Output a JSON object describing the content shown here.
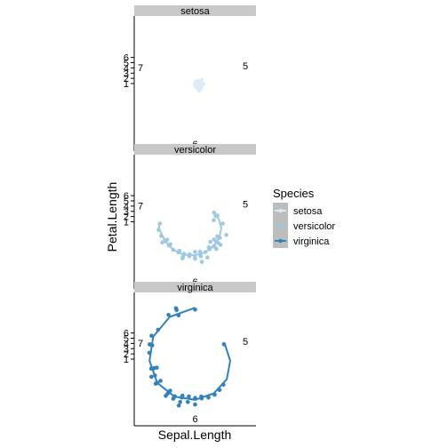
{
  "chart_data": {
    "type": "scatter",
    "coord": "polar",
    "xlabel": "Sepal.Length",
    "ylabel": "Petal.Length",
    "legend": {
      "title": "Species",
      "placement": "right"
    },
    "facets": [
      "setosa",
      "versicolor",
      "virginica"
    ],
    "theta_ticks": [
      "5",
      "6",
      "7"
    ],
    "r_ticks": [
      "1",
      "2",
      "3",
      "4",
      "5",
      "6"
    ],
    "theta_range": [
      4.3,
      7.9
    ],
    "r_range": [
      1.0,
      6.9
    ],
    "series": [
      {
        "name": "setosa",
        "color": "#deebf7",
        "points": [
          [
            4.3,
            1.1
          ],
          [
            4.4,
            1.3
          ],
          [
            4.4,
            1.4
          ],
          [
            4.5,
            1.3
          ],
          [
            4.6,
            1.4
          ],
          [
            4.6,
            1.5
          ],
          [
            4.6,
            1.0
          ],
          [
            4.7,
            1.3
          ],
          [
            4.7,
            1.6
          ],
          [
            4.8,
            1.4
          ],
          [
            4.8,
            1.6
          ],
          [
            4.8,
            1.9
          ],
          [
            4.9,
            1.4
          ],
          [
            4.9,
            1.5
          ],
          [
            5.0,
            1.4
          ],
          [
            5.0,
            1.5
          ],
          [
            5.0,
            1.6
          ],
          [
            5.0,
            1.2
          ],
          [
            5.1,
            1.4
          ],
          [
            5.1,
            1.5
          ],
          [
            5.1,
            1.7
          ],
          [
            5.1,
            1.9
          ],
          [
            5.2,
            1.5
          ],
          [
            5.2,
            1.4
          ],
          [
            5.3,
            1.5
          ],
          [
            5.4,
            1.7
          ],
          [
            5.4,
            1.5
          ],
          [
            5.4,
            1.3
          ],
          [
            5.5,
            1.4
          ],
          [
            5.5,
            1.3
          ],
          [
            5.7,
            1.7
          ],
          [
            5.7,
            1.5
          ],
          [
            5.8,
            1.2
          ]
        ],
        "smooth": [
          [
            4.3,
            1.3
          ],
          [
            4.5,
            1.35
          ],
          [
            4.7,
            1.4
          ],
          [
            4.9,
            1.45
          ],
          [
            5.1,
            1.5
          ],
          [
            5.3,
            1.5
          ],
          [
            5.5,
            1.45
          ],
          [
            5.7,
            1.45
          ],
          [
            5.8,
            1.4
          ]
        ]
      },
      {
        "name": "versicolor",
        "color": "#9ecae1",
        "points": [
          [
            4.9,
            3.3
          ],
          [
            5.0,
            3.5
          ],
          [
            5.0,
            3.3
          ],
          [
            5.1,
            3.0
          ],
          [
            5.2,
            3.9
          ],
          [
            5.4,
            4.5
          ],
          [
            5.5,
            4.0
          ],
          [
            5.5,
            3.8
          ],
          [
            5.5,
            3.7
          ],
          [
            5.6,
            3.9
          ],
          [
            5.6,
            4.5
          ],
          [
            5.6,
            4.2
          ],
          [
            5.6,
            3.6
          ],
          [
            5.7,
            4.5
          ],
          [
            5.7,
            3.5
          ],
          [
            5.7,
            4.2
          ],
          [
            5.7,
            4.1
          ],
          [
            5.8,
            4.1
          ],
          [
            5.8,
            4.0
          ],
          [
            5.8,
            3.9
          ],
          [
            5.9,
            4.8
          ],
          [
            5.9,
            4.2
          ],
          [
            6.0,
            4.5
          ],
          [
            6.0,
            4.0
          ],
          [
            6.0,
            5.1
          ],
          [
            6.0,
            4.4
          ],
          [
            6.1,
            4.7
          ],
          [
            6.1,
            4.0
          ],
          [
            6.1,
            4.6
          ],
          [
            6.2,
            4.3
          ],
          [
            6.2,
            4.5
          ],
          [
            6.3,
            4.7
          ],
          [
            6.3,
            4.9
          ],
          [
            6.3,
            4.4
          ],
          [
            6.4,
            4.5
          ],
          [
            6.4,
            4.3
          ],
          [
            6.5,
            4.6
          ],
          [
            6.6,
            4.6
          ],
          [
            6.6,
            4.4
          ],
          [
            6.7,
            4.7
          ],
          [
            6.7,
            4.4
          ],
          [
            6.7,
            5.0
          ],
          [
            6.8,
            4.8
          ],
          [
            6.9,
            4.9
          ],
          [
            7.0,
            4.7
          ]
        ],
        "smooth": [
          [
            4.9,
            3.3
          ],
          [
            5.1,
            3.55
          ],
          [
            5.3,
            3.8
          ],
          [
            5.5,
            3.95
          ],
          [
            5.7,
            4.05
          ],
          [
            5.9,
            4.2
          ],
          [
            6.1,
            4.35
          ],
          [
            6.3,
            4.5
          ],
          [
            6.5,
            4.6
          ],
          [
            6.7,
            4.65
          ],
          [
            6.9,
            4.8
          ],
          [
            7.0,
            4.85
          ]
        ]
      },
      {
        "name": "virginica",
        "color": "#3182bd",
        "points": [
          [
            4.9,
            4.5
          ],
          [
            5.6,
            4.9
          ],
          [
            5.7,
            5.0
          ],
          [
            5.8,
            5.1
          ],
          [
            5.8,
            5.1
          ],
          [
            5.8,
            5.1
          ],
          [
            5.9,
            5.1
          ],
          [
            6.0,
            4.8
          ],
          [
            6.0,
            5.0
          ],
          [
            6.1,
            5.6
          ],
          [
            6.1,
            4.9
          ],
          [
            6.2,
            5.4
          ],
          [
            6.2,
            4.8
          ],
          [
            6.3,
            6.0
          ],
          [
            6.3,
            5.1
          ],
          [
            6.3,
            5.6
          ],
          [
            6.3,
            4.9
          ],
          [
            6.3,
            5.0
          ],
          [
            6.4,
            5.3
          ],
          [
            6.4,
            5.5
          ],
          [
            6.4,
            5.6
          ],
          [
            6.4,
            5.3
          ],
          [
            6.5,
            5.8
          ],
          [
            6.5,
            5.1
          ],
          [
            6.5,
            5.5
          ],
          [
            6.5,
            5.2
          ],
          [
            6.7,
            5.8
          ],
          [
            6.7,
            5.7
          ],
          [
            6.7,
            5.6
          ],
          [
            6.7,
            5.2
          ],
          [
            6.8,
            5.5
          ],
          [
            6.8,
            5.9
          ],
          [
            6.9,
            5.4
          ],
          [
            6.9,
            5.7
          ],
          [
            6.9,
            5.1
          ],
          [
            7.1,
            5.9
          ],
          [
            7.2,
            6.1
          ],
          [
            7.2,
            5.8
          ],
          [
            7.2,
            6.0
          ],
          [
            7.3,
            6.3
          ],
          [
            7.4,
            6.1
          ],
          [
            7.6,
            6.6
          ],
          [
            7.7,
            6.7
          ],
          [
            7.7,
            6.9
          ],
          [
            7.7,
            6.1
          ],
          [
            7.9,
            6.4
          ]
        ],
        "smooth": [
          [
            4.9,
            4.6
          ],
          [
            5.2,
            4.7
          ],
          [
            5.5,
            4.85
          ],
          [
            5.8,
            4.95
          ],
          [
            6.1,
            5.1
          ],
          [
            6.4,
            5.35
          ],
          [
            6.7,
            5.6
          ],
          [
            7.0,
            5.8
          ],
          [
            7.3,
            6.1
          ],
          [
            7.6,
            6.35
          ],
          [
            7.9,
            6.6
          ]
        ]
      }
    ]
  }
}
